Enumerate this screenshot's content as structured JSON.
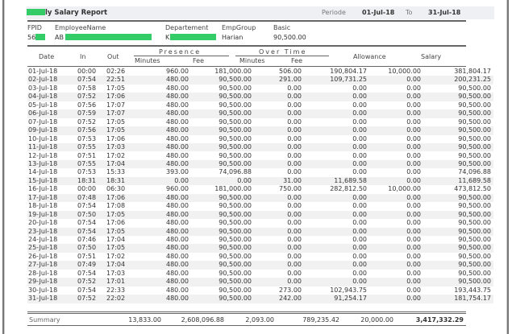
{
  "header": {
    "title": "ly Salary Report",
    "periode_label": "Periode",
    "from": "01-Jul-18",
    "to_label": "To",
    "to": "31-Jul-18"
  },
  "employee": {
    "labels": {
      "fpid": "FPID",
      "name": "EmployeeName",
      "dept": "Departement",
      "group": "EmpGroup",
      "basic": "Basic"
    },
    "values": {
      "fpid": "56",
      "name": "AB",
      "dept": "K",
      "group": "Harian",
      "basic": "90,500.00"
    }
  },
  "columns": {
    "date": "Date",
    "in": "In",
    "out": "Out",
    "presence": "Presence",
    "overtime": "Over Time",
    "minutes": "Minutes",
    "fee": "Fee",
    "ot_minutes": "Minutes",
    "ot_fee": "Fee",
    "allowance": "Allowance",
    "salary": "Salary"
  },
  "rows": [
    [
      "01-Jul-18",
      "00:00",
      "02:26",
      "960.00",
      "181,000.00",
      "506.00",
      "190,804.17",
      "10,000.00",
      "381,804.17"
    ],
    [
      "02-Jul-18",
      "07:54",
      "22:51",
      "480.00",
      "90,500.00",
      "291.00",
      "109,731.25",
      "0.00",
      "200,231.25"
    ],
    [
      "03-Jul-18",
      "07:58",
      "17:05",
      "480.00",
      "90,500.00",
      "0.00",
      "0.00",
      "0.00",
      "90,500.00"
    ],
    [
      "04-Jul-18",
      "07:52",
      "17:06",
      "480.00",
      "90,500.00",
      "0.00",
      "0.00",
      "0.00",
      "90,500.00"
    ],
    [
      "05-Jul-18",
      "07:56",
      "17:07",
      "480.00",
      "90,500.00",
      "0.00",
      "0.00",
      "0.00",
      "90,500.00"
    ],
    [
      "06-Jul-18",
      "07:59",
      "17:07",
      "480.00",
      "90,500.00",
      "0.00",
      "0.00",
      "0.00",
      "90,500.00"
    ],
    [
      "07-Jul-18",
      "07:52",
      "17:05",
      "480.00",
      "90,500.00",
      "0.00",
      "0.00",
      "0.00",
      "90,500.00"
    ],
    [
      "09-Jul-18",
      "07:56",
      "17:05",
      "480.00",
      "90,500.00",
      "0.00",
      "0.00",
      "0.00",
      "90,500.00"
    ],
    [
      "10-Jul-18",
      "07:53",
      "17:06",
      "480.00",
      "90,500.00",
      "0.00",
      "0.00",
      "0.00",
      "90,500.00"
    ],
    [
      "11-Jul-18",
      "07:55",
      "17:03",
      "480.00",
      "90,500.00",
      "0.00",
      "0.00",
      "0.00",
      "90,500.00"
    ],
    [
      "12-Jul-18",
      "07:51",
      "17:02",
      "480.00",
      "90,500.00",
      "0.00",
      "0.00",
      "0.00",
      "90,500.00"
    ],
    [
      "13-Jul-18",
      "07:55",
      "17:04",
      "480.00",
      "90,500.00",
      "0.00",
      "0.00",
      "0.00",
      "90,500.00"
    ],
    [
      "14-Jul-18",
      "07:53",
      "15:33",
      "393.00",
      "74,096.88",
      "0.00",
      "0.00",
      "0.00",
      "74,096.88"
    ],
    [
      "15-Jul-18",
      "18:31",
      "18:31",
      "0.00",
      "0.00",
      "31.00",
      "11,689.58",
      "0.00",
      "11,689.58"
    ],
    [
      "16-Jul-18",
      "00:00",
      "06:30",
      "960.00",
      "181,000.00",
      "750.00",
      "282,812.50",
      "10,000.00",
      "473,812.50"
    ],
    [
      "17-Jul-18",
      "07:48",
      "17:06",
      "480.00",
      "90,500.00",
      "0.00",
      "0.00",
      "0.00",
      "90,500.00"
    ],
    [
      "18-Jul-18",
      "07:54",
      "17:08",
      "480.00",
      "90,500.00",
      "0.00",
      "0.00",
      "0.00",
      "90,500.00"
    ],
    [
      "19-Jul-18",
      "07:50",
      "17:05",
      "480.00",
      "90,500.00",
      "0.00",
      "0.00",
      "0.00",
      "90,500.00"
    ],
    [
      "20-Jul-18",
      "07:54",
      "17:06",
      "480.00",
      "90,500.00",
      "0.00",
      "0.00",
      "0.00",
      "90,500.00"
    ],
    [
      "23-Jul-18",
      "07:54",
      "17:05",
      "480.00",
      "90,500.00",
      "0.00",
      "0.00",
      "0.00",
      "90,500.00"
    ],
    [
      "24-Jul-18",
      "07:46",
      "17:04",
      "480.00",
      "90,500.00",
      "0.00",
      "0.00",
      "0.00",
      "90,500.00"
    ],
    [
      "25-Jul-18",
      "07:50",
      "17:05",
      "480.00",
      "90,500.00",
      "0.00",
      "0.00",
      "0.00",
      "90,500.00"
    ],
    [
      "26-Jul-18",
      "07:51",
      "17:02",
      "480.00",
      "90,500.00",
      "0.00",
      "0.00",
      "0.00",
      "90,500.00"
    ],
    [
      "27-Jul-18",
      "07:49",
      "17:04",
      "480.00",
      "90,500.00",
      "0.00",
      "0.00",
      "0.00",
      "90,500.00"
    ],
    [
      "28-Jul-18",
      "07:54",
      "17:03",
      "480.00",
      "90,500.00",
      "0.00",
      "0.00",
      "0.00",
      "90,500.00"
    ],
    [
      "29-Jul-18",
      "07:52",
      "17:01",
      "480.00",
      "90,500.00",
      "0.00",
      "0.00",
      "0.00",
      "90,500.00"
    ],
    [
      "30-Jul-18",
      "07:54",
      "22:33",
      "480.00",
      "90,500.00",
      "273.00",
      "102,943.75",
      "0.00",
      "193,443.75"
    ],
    [
      "31-Jul-18",
      "07:52",
      "22:02",
      "480.00",
      "90,500.00",
      "242.00",
      "91,254.17",
      "0.00",
      "181,754.17"
    ]
  ],
  "summary": {
    "label": "Summary",
    "minutes": "13,833.00",
    "fee": "2,608,096.88",
    "ot_minutes": "2,093.00",
    "ot_fee": "789,235.42",
    "allowance": "20,000.00",
    "salary": "3,417,332.29"
  },
  "colors": {
    "redaction": "#33cc66",
    "header_band": "#eef0f4",
    "row_alt": "#f1f1f1"
  }
}
